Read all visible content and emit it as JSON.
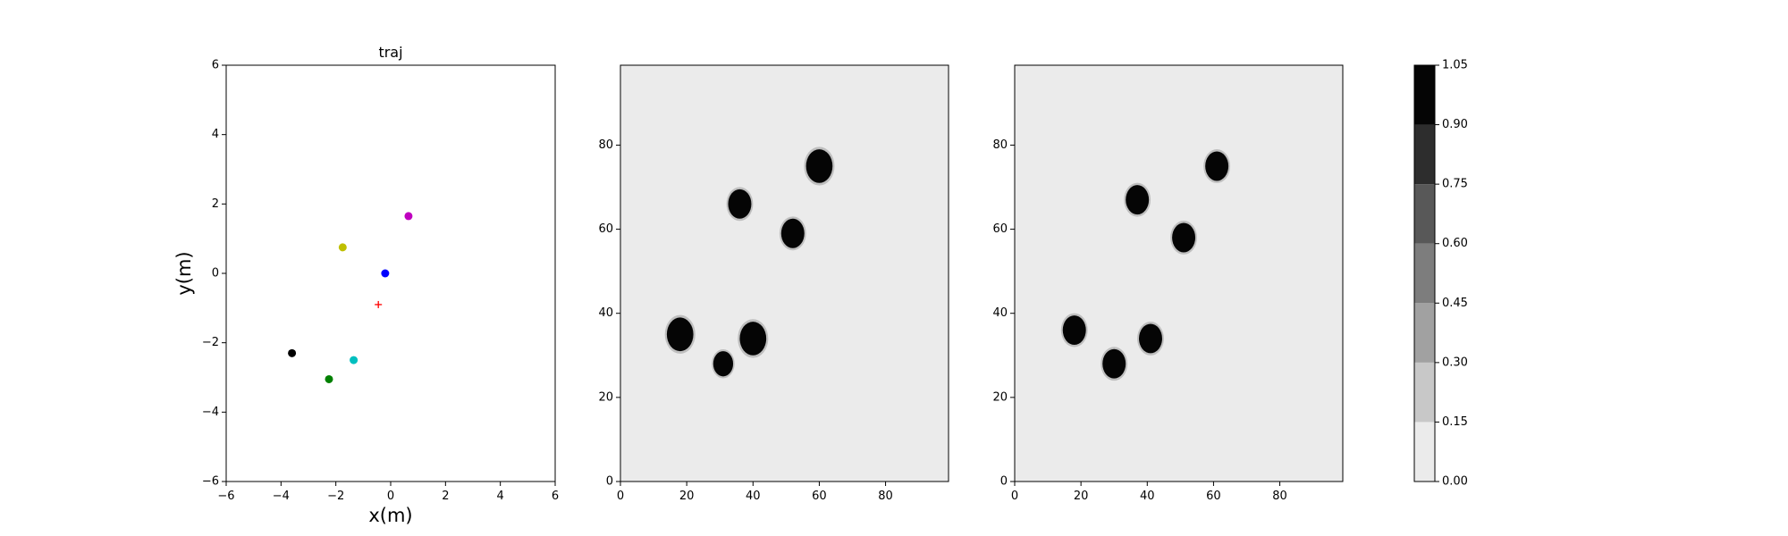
{
  "chart_data": [
    {
      "type": "scatter",
      "title": "traj",
      "xlabel": "x(m)",
      "ylabel": "y(m)",
      "xlim": [
        -6,
        6
      ],
      "ylim": [
        -6,
        6
      ],
      "xticks": [
        "−6",
        "−4",
        "−2",
        "0",
        "2",
        "4",
        "6"
      ],
      "yticks": [
        "−6",
        "−4",
        "−2",
        "0",
        "2",
        "4",
        "6"
      ],
      "grid": false,
      "points": [
        {
          "x": 0.65,
          "y": 1.65,
          "color": "#bf00bf",
          "marker": "circle"
        },
        {
          "x": -1.75,
          "y": 0.75,
          "color": "#bfbf00",
          "marker": "circle"
        },
        {
          "x": -0.2,
          "y": 0.0,
          "color": "#0000ff",
          "marker": "circle"
        },
        {
          "x": -0.45,
          "y": -0.9,
          "color": "#ff0000",
          "marker": "plus"
        },
        {
          "x": -3.6,
          "y": -2.3,
          "color": "#000000",
          "marker": "circle"
        },
        {
          "x": -1.35,
          "y": -2.5,
          "color": "#00bfbf",
          "marker": "circle"
        },
        {
          "x": -2.25,
          "y": -3.05,
          "color": "#008000",
          "marker": "circle"
        }
      ]
    },
    {
      "type": "heatmap",
      "title": "",
      "xlim": [
        0,
        99
      ],
      "ylim": [
        0,
        99
      ],
      "xticks": [
        "0",
        "20",
        "40",
        "60",
        "80"
      ],
      "yticks": [
        "0",
        "20",
        "40",
        "60",
        "80"
      ],
      "background_value": 0.05,
      "blobs": [
        {
          "cx": 60,
          "cy": 75,
          "r": 4.0,
          "value": 1.0
        },
        {
          "cx": 36,
          "cy": 66,
          "r": 3.5,
          "value": 1.0
        },
        {
          "cx": 52,
          "cy": 59,
          "r": 3.5,
          "value": 1.0
        },
        {
          "cx": 18,
          "cy": 35,
          "r": 4.0,
          "value": 1.0
        },
        {
          "cx": 40,
          "cy": 34,
          "r": 4.0,
          "value": 1.0
        },
        {
          "cx": 31,
          "cy": 28,
          "r": 3.0,
          "value": 1.0
        }
      ]
    },
    {
      "type": "heatmap",
      "title": "",
      "xlim": [
        0,
        99
      ],
      "ylim": [
        0,
        99
      ],
      "xticks": [
        "0",
        "20",
        "40",
        "60",
        "80"
      ],
      "yticks": [
        "0",
        "20",
        "40",
        "60",
        "80"
      ],
      "background_value": 0.05,
      "blobs": [
        {
          "cx": 61,
          "cy": 75,
          "r": 3.5,
          "value": 1.0
        },
        {
          "cx": 37,
          "cy": 67,
          "r": 3.5,
          "value": 1.0
        },
        {
          "cx": 51,
          "cy": 58,
          "r": 3.5,
          "value": 1.0
        },
        {
          "cx": 18,
          "cy": 36,
          "r": 3.5,
          "value": 1.0
        },
        {
          "cx": 41,
          "cy": 34,
          "r": 3.5,
          "value": 1.0
        },
        {
          "cx": 30,
          "cy": 28,
          "r": 3.5,
          "value": 1.0
        }
      ]
    }
  ],
  "colorbar": {
    "levels": [
      0.0,
      0.15,
      0.3,
      0.45,
      0.6,
      0.75,
      0.9,
      1.05
    ],
    "tick_labels": [
      "0.00",
      "0.15",
      "0.30",
      "0.45",
      "0.60",
      "0.75",
      "0.90",
      "1.05"
    ],
    "colors": [
      "#ebebeb",
      "#c8c8c8",
      "#a1a1a1",
      "#7d7d7d",
      "#585858",
      "#2d2d2d",
      "#050505"
    ]
  }
}
